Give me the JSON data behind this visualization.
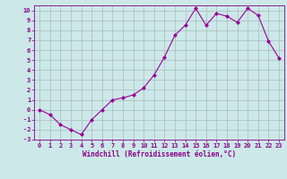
{
  "x": [
    0,
    1,
    2,
    3,
    4,
    5,
    6,
    7,
    8,
    9,
    10,
    11,
    12,
    13,
    14,
    15,
    16,
    17,
    18,
    19,
    20,
    21,
    22,
    23
  ],
  "y": [
    0,
    -0.5,
    -1.5,
    -2,
    -2.5,
    -1,
    0,
    1.0,
    1.2,
    1.5,
    2.2,
    3.5,
    5.3,
    7.5,
    8.5,
    10.2,
    8.5,
    9.7,
    9.4,
    8.8,
    10.2,
    9.5,
    6.9,
    5.2
  ],
  "xlabel": "Windchill (Refroidissement éolien,°C)",
  "line_color": "#990099",
  "marker": "D",
  "marker_size": 2.0,
  "bg_color": "#cce8e8",
  "grid_color": "#aabbbb",
  "ylim": [
    -3,
    10.5
  ],
  "yticks": [
    -3,
    -2,
    -1,
    0,
    1,
    2,
    3,
    4,
    5,
    6,
    7,
    8,
    9,
    10
  ],
  "xticks": [
    0,
    1,
    2,
    3,
    4,
    5,
    6,
    7,
    8,
    9,
    10,
    11,
    12,
    13,
    14,
    15,
    16,
    17,
    18,
    19,
    20,
    21,
    22,
    23
  ],
  "tick_color": "#880088",
  "label_color": "#880088",
  "spine_color": "#880088"
}
